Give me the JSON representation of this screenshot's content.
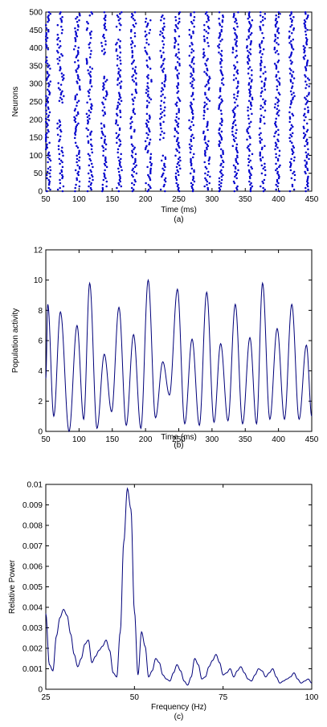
{
  "chart_data": [
    {
      "type": "scatter",
      "xlabel": "Time (ms)",
      "ylabel": "Neurons",
      "caption": "(a)",
      "xlim": [
        50,
        450
      ],
      "ylim": [
        0,
        500
      ],
      "xticks": [
        50,
        100,
        150,
        200,
        250,
        300,
        350,
        400,
        450
      ],
      "yticks": [
        0,
        50,
        100,
        150,
        200,
        250,
        300,
        350,
        400,
        450,
        500
      ],
      "marker_color": "#0000cc",
      "columns": [
        {
          "t": 53,
          "width": 5,
          "gaps": []
        },
        {
          "t": 72,
          "width": 6,
          "gaps": [
            [
              200,
              240
            ]
          ]
        },
        {
          "t": 97,
          "width": 5,
          "gaps": []
        },
        {
          "t": 116,
          "width": 6,
          "gaps": []
        },
        {
          "t": 138,
          "width": 5,
          "gaps": [
            [
              320,
              380
            ]
          ]
        },
        {
          "t": 160,
          "width": 5,
          "gaps": []
        },
        {
          "t": 182,
          "width": 5,
          "gaps": []
        },
        {
          "t": 204,
          "width": 6,
          "gaps": []
        },
        {
          "t": 226,
          "width": 5,
          "gaps": [
            [
              100,
              140
            ]
          ]
        },
        {
          "t": 248,
          "width": 5,
          "gaps": []
        },
        {
          "t": 270,
          "width": 5,
          "gaps": []
        },
        {
          "t": 292,
          "width": 6,
          "gaps": []
        },
        {
          "t": 313,
          "width": 5,
          "gaps": []
        },
        {
          "t": 335,
          "width": 5,
          "gaps": []
        },
        {
          "t": 357,
          "width": 5,
          "gaps": []
        },
        {
          "t": 376,
          "width": 6,
          "gaps": []
        },
        {
          "t": 398,
          "width": 5,
          "gaps": []
        },
        {
          "t": 420,
          "width": 5,
          "gaps": []
        },
        {
          "t": 442,
          "width": 5,
          "gaps": []
        }
      ]
    },
    {
      "type": "line",
      "xlabel": "Time (ms)",
      "ylabel": "Population activity",
      "caption": "(b)",
      "xlim": [
        50,
        450
      ],
      "ylim": [
        0,
        12
      ],
      "xticks": [
        50,
        100,
        150,
        200,
        250,
        300,
        350,
        400,
        450
      ],
      "yticks": [
        0,
        2,
        4,
        6,
        8,
        10,
        12
      ],
      "line_color": "#00007a",
      "peaks": [
        {
          "t": 53,
          "v": 8.4
        },
        {
          "t": 72,
          "v": 7.9
        },
        {
          "t": 97,
          "v": 7.0
        },
        {
          "t": 116,
          "v": 9.8
        },
        {
          "t": 138,
          "v": 5.1
        },
        {
          "t": 160,
          "v": 8.2
        },
        {
          "t": 182,
          "v": 6.4
        },
        {
          "t": 204,
          "v": 10.0
        },
        {
          "t": 226,
          "v": 4.6
        },
        {
          "t": 248,
          "v": 9.4
        },
        {
          "t": 270,
          "v": 6.1
        },
        {
          "t": 292,
          "v": 9.2
        },
        {
          "t": 313,
          "v": 5.8
        },
        {
          "t": 335,
          "v": 8.4
        },
        {
          "t": 357,
          "v": 6.2
        },
        {
          "t": 376,
          "v": 9.8
        },
        {
          "t": 398,
          "v": 6.8
        },
        {
          "t": 420,
          "v": 8.4
        },
        {
          "t": 442,
          "v": 5.7
        }
      ],
      "troughs": [
        {
          "t": 50,
          "v": 3.5
        },
        {
          "t": 62,
          "v": 1.0
        },
        {
          "t": 85,
          "v": 0.0
        },
        {
          "t": 107,
          "v": 0.8
        },
        {
          "t": 127,
          "v": 0.2
        },
        {
          "t": 149,
          "v": 1.3
        },
        {
          "t": 171,
          "v": 0.4
        },
        {
          "t": 193,
          "v": 0.2
        },
        {
          "t": 215,
          "v": 0.9
        },
        {
          "t": 236,
          "v": 2.4
        },
        {
          "t": 259,
          "v": 0.5
        },
        {
          "t": 281,
          "v": 0.4
        },
        {
          "t": 303,
          "v": 0.6
        },
        {
          "t": 324,
          "v": 0.7
        },
        {
          "t": 346,
          "v": 0.5
        },
        {
          "t": 367,
          "v": 0.5
        },
        {
          "t": 387,
          "v": 0.8
        },
        {
          "t": 409,
          "v": 0.8
        },
        {
          "t": 431,
          "v": 0.8
        },
        {
          "t": 450,
          "v": 1.0
        }
      ]
    },
    {
      "type": "line",
      "xlabel": "Frequency (Hz)",
      "ylabel": "Relative Power",
      "caption": "(c)",
      "xlim": [
        25,
        100
      ],
      "ylim": [
        0,
        0.01
      ],
      "xticks": [
        25,
        50,
        75,
        100
      ],
      "yticks": [
        0,
        0.001,
        0.002,
        0.003,
        0.004,
        0.005,
        0.006,
        0.007,
        0.008,
        0.009,
        0.01
      ],
      "line_color": "#00007a",
      "x": [
        25,
        26,
        27,
        28,
        29,
        30,
        31,
        32,
        33,
        34,
        35,
        36,
        37,
        38,
        39,
        40,
        41,
        42,
        43,
        44,
        45,
        46,
        47,
        48,
        49,
        50,
        51,
        52,
        53,
        54,
        55,
        56,
        57,
        58,
        59,
        60,
        61,
        62,
        63,
        64,
        65,
        66,
        67,
        68,
        69,
        70,
        71,
        72,
        73,
        74,
        75,
        76,
        77,
        78,
        79,
        80,
        81,
        82,
        83,
        84,
        85,
        86,
        87,
        88,
        89,
        90,
        91,
        92,
        93,
        94,
        95,
        96,
        97,
        98,
        99,
        100
      ],
      "y": [
        0.0037,
        0.0012,
        0.0009,
        0.0026,
        0.0035,
        0.0039,
        0.0036,
        0.0027,
        0.0017,
        0.0011,
        0.0015,
        0.0022,
        0.0024,
        0.0013,
        0.0016,
        0.0019,
        0.0021,
        0.0024,
        0.0019,
        0.0008,
        0.0006,
        0.0028,
        0.0072,
        0.0098,
        0.0088,
        0.0038,
        0.0007,
        0.0028,
        0.0021,
        0.0006,
        0.0009,
        0.0015,
        0.0013,
        0.0007,
        0.0005,
        0.0004,
        0.0008,
        0.0012,
        0.0009,
        0.0004,
        0.0002,
        0.0006,
        0.0015,
        0.0012,
        0.0005,
        0.0006,
        0.0011,
        0.0014,
        0.0017,
        0.0013,
        0.0007,
        0.0008,
        0.001,
        0.0006,
        0.0009,
        0.0011,
        0.0008,
        0.0005,
        0.0004,
        0.0007,
        0.001,
        0.0009,
        0.0006,
        0.0008,
        0.001,
        0.0006,
        0.0003,
        0.0004,
        0.0005,
        0.0006,
        0.0008,
        0.0005,
        0.0003,
        0.0004,
        0.0005,
        0.0003
      ]
    }
  ]
}
